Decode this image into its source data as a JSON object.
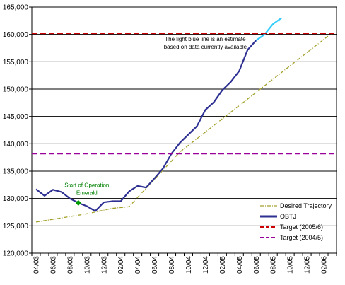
{
  "chart_data": {
    "type": "line",
    "title": "",
    "xlabel": "",
    "ylabel": "",
    "ylim": [
      120000,
      165000
    ],
    "yticks": [
      120000,
      125000,
      130000,
      135000,
      140000,
      145000,
      150000,
      155000,
      160000,
      165000
    ],
    "ytick_labels": [
      "120,000",
      "125,000",
      "130,000",
      "135,000",
      "140,000",
      "145,000",
      "150,000",
      "155,000",
      "160,000",
      "165,000"
    ],
    "x_categories": [
      "04/03",
      "05/03",
      "06/03",
      "07/03",
      "08/03",
      "09/03",
      "10/03",
      "11/03",
      "12/03",
      "01/04",
      "02/04",
      "03/04",
      "04/04",
      "05/04",
      "06/04",
      "07/04",
      "08/04",
      "09/04",
      "10/04",
      "11/04",
      "12/04",
      "01/05",
      "02/05",
      "03/05",
      "04/05",
      "05/05",
      "06/05",
      "07/05",
      "08/05",
      "09/05",
      "10/05",
      "11/05",
      "12/05",
      "01/06",
      "02/06",
      "03/06"
    ],
    "x_tick_labels": [
      "04/03",
      "06/03",
      "08/03",
      "10/03",
      "12/03",
      "02/04",
      "04/04",
      "06/04",
      "08/04",
      "10/04",
      "12/04",
      "02/05",
      "04/05",
      "06/05",
      "08/05",
      "10/05",
      "12/05",
      "02/06"
    ],
    "grid": "horizontal",
    "legend_position": "bottom-right",
    "series": [
      {
        "name": "Desired Trajectory",
        "color": "#a3a02a",
        "style": "dash-dot",
        "points": [
          {
            "x": "04/03",
            "y": 125700
          },
          {
            "x": "10/03",
            "y": 127200
          },
          {
            "x": "01/04",
            "y": 128200
          },
          {
            "x": "03/04",
            "y": 128500
          },
          {
            "x": "04/04",
            "y": 130200
          },
          {
            "x": "09/04",
            "y": 138500
          },
          {
            "x": "03/06",
            "y": 160300
          }
        ]
      },
      {
        "name": "OBTJ",
        "color": "#2e3192",
        "style": "solid",
        "points": [
          {
            "x": "04/03",
            "y": 131700
          },
          {
            "x": "05/03",
            "y": 130500
          },
          {
            "x": "06/03",
            "y": 131600
          },
          {
            "x": "07/03",
            "y": 131200
          },
          {
            "x": "08/03",
            "y": 130000
          },
          {
            "x": "09/03",
            "y": 129200
          },
          {
            "x": "10/03",
            "y": 128600
          },
          {
            "x": "11/03",
            "y": 127700
          },
          {
            "x": "12/03",
            "y": 129300
          },
          {
            "x": "01/04",
            "y": 129500
          },
          {
            "x": "02/04",
            "y": 129500
          },
          {
            "x": "03/04",
            "y": 131300
          },
          {
            "x": "04/04",
            "y": 132300
          },
          {
            "x": "05/04",
            "y": 132000
          },
          {
            "x": "06/04",
            "y": 133700
          },
          {
            "x": "07/04",
            "y": 135500
          },
          {
            "x": "08/04",
            "y": 138200
          },
          {
            "x": "09/04",
            "y": 140200
          },
          {
            "x": "10/04",
            "y": 141700
          },
          {
            "x": "11/04",
            "y": 143200
          },
          {
            "x": "12/04",
            "y": 146200
          },
          {
            "x": "01/05",
            "y": 147600
          },
          {
            "x": "02/05",
            "y": 149800
          },
          {
            "x": "03/05",
            "y": 151300
          },
          {
            "x": "04/05",
            "y": 153300
          },
          {
            "x": "05/05",
            "y": 157200
          },
          {
            "x": "06/05",
            "y": 158900
          }
        ]
      },
      {
        "name": "Estimate",
        "color": "#33ccff",
        "style": "solid",
        "points": [
          {
            "x": "06/05",
            "y": 158900
          },
          {
            "x": "07/05",
            "y": 160000
          },
          {
            "x": "08/05",
            "y": 161900
          },
          {
            "x": "09/05",
            "y": 163000
          }
        ]
      },
      {
        "name": "Target (2005/6)",
        "color": "#cc0000",
        "style": "dashed",
        "constant": 160200
      },
      {
        "name": "Target (2004/5)",
        "color": "#990099",
        "style": "dashed",
        "constant": 138200
      }
    ],
    "legend": [
      "Desired Trajectory",
      "OBTJ",
      "Target (2005/6)",
      "Target (2004/5)"
    ],
    "annotations": [
      {
        "lines": [
          "The light blue line is an estimate",
          "based on data currently available"
        ],
        "color": "#000000",
        "anchor": {
          "x": "12/04",
          "y": 158800
        }
      },
      {
        "lines": [
          "Start of Operation",
          "Emerald"
        ],
        "color": "#008000",
        "anchor": {
          "x": "10/03",
          "y": 132100
        },
        "marker": {
          "x": "09/03",
          "y": 129200,
          "color": "#009900"
        }
      }
    ]
  }
}
